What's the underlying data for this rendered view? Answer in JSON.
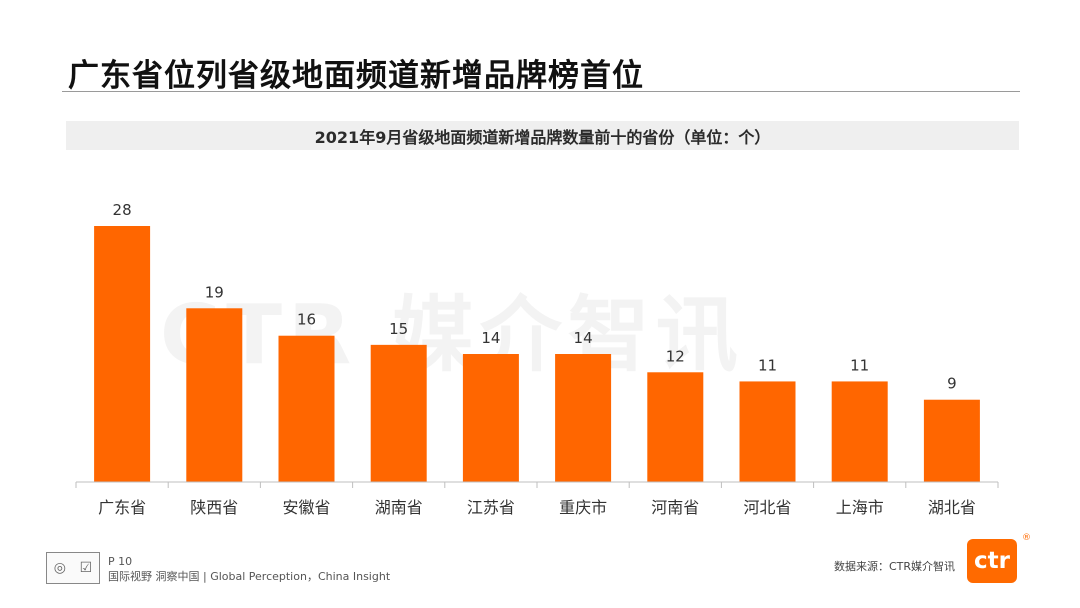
{
  "page": {
    "title": "广东省位列省级地面频道新增品牌榜首位",
    "watermark": "CTR 媒介智讯",
    "page_number": "P 10",
    "tagline": "国际视野  洞察中国 | Global Perception，China Insight",
    "source": "数据来源：CTR媒介智讯",
    "brand_logo": "ctr",
    "registered_mark": "®",
    "cert_icons": [
      "◎",
      "☑"
    ]
  },
  "colors": {
    "bar": "#ff6600",
    "axis": "#bfbfbf"
  },
  "chart_data": {
    "type": "bar",
    "title": "2021年9月省级地面频道新增品牌数量前十的省份（单位：个）",
    "categories": [
      "广东省",
      "陕西省",
      "安徽省",
      "湖南省",
      "江苏省",
      "重庆市",
      "河南省",
      "河北省",
      "上海市",
      "湖北省"
    ],
    "values": [
      28,
      19,
      16,
      15,
      14,
      14,
      12,
      11,
      11,
      9
    ],
    "xlabel": "",
    "ylabel": "",
    "ylim": [
      0,
      28
    ],
    "grid": false,
    "legend": "none"
  }
}
